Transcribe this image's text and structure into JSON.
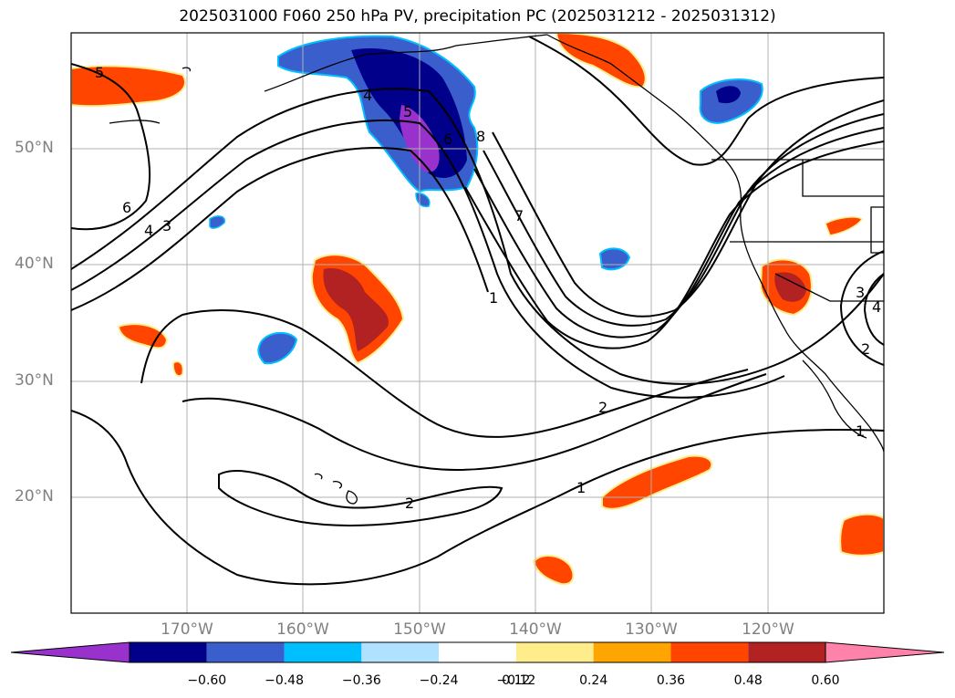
{
  "title": "2025031000 F060 250 hPa PV, precipitation PC (2025031212 - 2025031312)",
  "lat_labels": [
    "50°N",
    "40°N",
    "30°N",
    "20°N"
  ],
  "lon_labels": [
    "170°W",
    "160°W",
    "150°W",
    "140°W",
    "130°W",
    "120°W"
  ],
  "contour_labels": [
    "5",
    "6",
    "4",
    "3",
    "4",
    "5",
    "6",
    "8",
    "7",
    "1",
    "2",
    "1",
    "2",
    "3",
    "4",
    "2",
    "1"
  ],
  "colorbar": {
    "colors": [
      "#9932cc",
      "#00008b",
      "#3a5fcd",
      "#00bfff",
      "#b0e2ff",
      "#ffffff",
      "#ffec8b",
      "#ffa500",
      "#ff4500",
      "#b22222",
      "#ff82ab"
    ],
    "labels": [
      "−0.60",
      "−0.48",
      "−0.36",
      "−0.24",
      "−0.12",
      "0.12",
      "0.24",
      "0.36",
      "0.48",
      "0.60"
    ]
  }
}
